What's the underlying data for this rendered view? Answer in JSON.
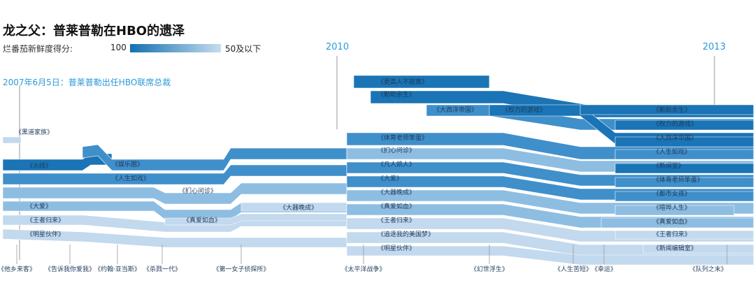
{
  "title": "龙之父：普莱普勒在HBO的遗泽",
  "legend": {
    "label": "烂番茄新鲜度得分:",
    "high": "100",
    "low": "50及以下",
    "colors": [
      "#1470b0",
      "#c6dcee"
    ]
  },
  "annotation": "2007年6月5日：普莱普勒出任HBO联席总裁",
  "years": [
    "2010",
    "2013"
  ],
  "colors": {
    "dark": "#1a74b5",
    "mid": "#3f8fcb",
    "light": "#8ebde2",
    "pale": "#c2d9ee",
    "label": "#1f3a5a",
    "line": "#999999"
  },
  "shows": [
    {
      "name": "《黑道家族》",
      "shade": "pale"
    },
    {
      "name": "《火线》",
      "shade": "dark"
    },
    {
      "name": "《娱乐圈》",
      "shade": "mid"
    },
    {
      "name": "《人生如戏》",
      "shade": "mid"
    },
    {
      "name": "《扪心问诊》",
      "shade": "light"
    },
    {
      "name": "《大爱》",
      "shade": "light"
    },
    {
      "name": "《王者归来》",
      "shade": "pale"
    },
    {
      "name": "《明星伙伴》",
      "shade": "pale"
    },
    {
      "name": "《真爱如血》",
      "shade": "pale"
    },
    {
      "name": "《大器晚成》",
      "shade": "pale"
    },
    {
      "name": "《更高人不寂寞》",
      "shade": "dark"
    },
    {
      "name": "《勤助余生》",
      "shade": "dark"
    },
    {
      "name": "《大西洋帝国》",
      "shade": "mid"
    },
    {
      "name": "《权力的游戏》",
      "shade": "dark"
    },
    {
      "name": "《体育老师笨蛋》",
      "shade": "mid"
    },
    {
      "name": "《扪心问诊》",
      "shade": "light"
    },
    {
      "name": "《凡人凯人》",
      "shade": "mid"
    },
    {
      "name": "《大爱》",
      "shade": "mid"
    },
    {
      "name": "《大器晚成》",
      "shade": "light"
    },
    {
      "name": "《真爱如血》",
      "shade": "light"
    },
    {
      "name": "《王者归来》",
      "shade": "pale"
    },
    {
      "name": "《追逐我的美国梦》",
      "shade": "pale"
    },
    {
      "name": "《明星伙伴》",
      "shade": "pale"
    },
    {
      "name": "《勤助余生》",
      "shade": "dark"
    },
    {
      "name": "《权力的游戏》",
      "shade": "dark"
    },
    {
      "name": "《大西洋帝国》",
      "shade": "dark"
    },
    {
      "name": "《人生如戏》",
      "shade": "mid"
    },
    {
      "name": "《新闻室》",
      "shade": "dark"
    },
    {
      "name": "《体育老师笨蛋》",
      "shade": "mid"
    },
    {
      "name": "《都市女孩》",
      "shade": "mid"
    },
    {
      "name": "《喧哗人生》",
      "shade": "light"
    },
    {
      "name": "《真爱如血》",
      "shade": "light"
    },
    {
      "name": "《王者归来》",
      "shade": "pale"
    },
    {
      "name": "《新闻编辑室》",
      "shade": "pale"
    }
  ],
  "ended": [
    "《他乡来客》",
    "《告诉我你爱我》",
    "《约翰·亚当斯》",
    "《杀戮一代》",
    "《第一女子侦探所》",
    "《太平洋战争》",
    "《幻世浮生》",
    "《人生苦短》",
    "《幸运》",
    "《队列之末》"
  ]
}
